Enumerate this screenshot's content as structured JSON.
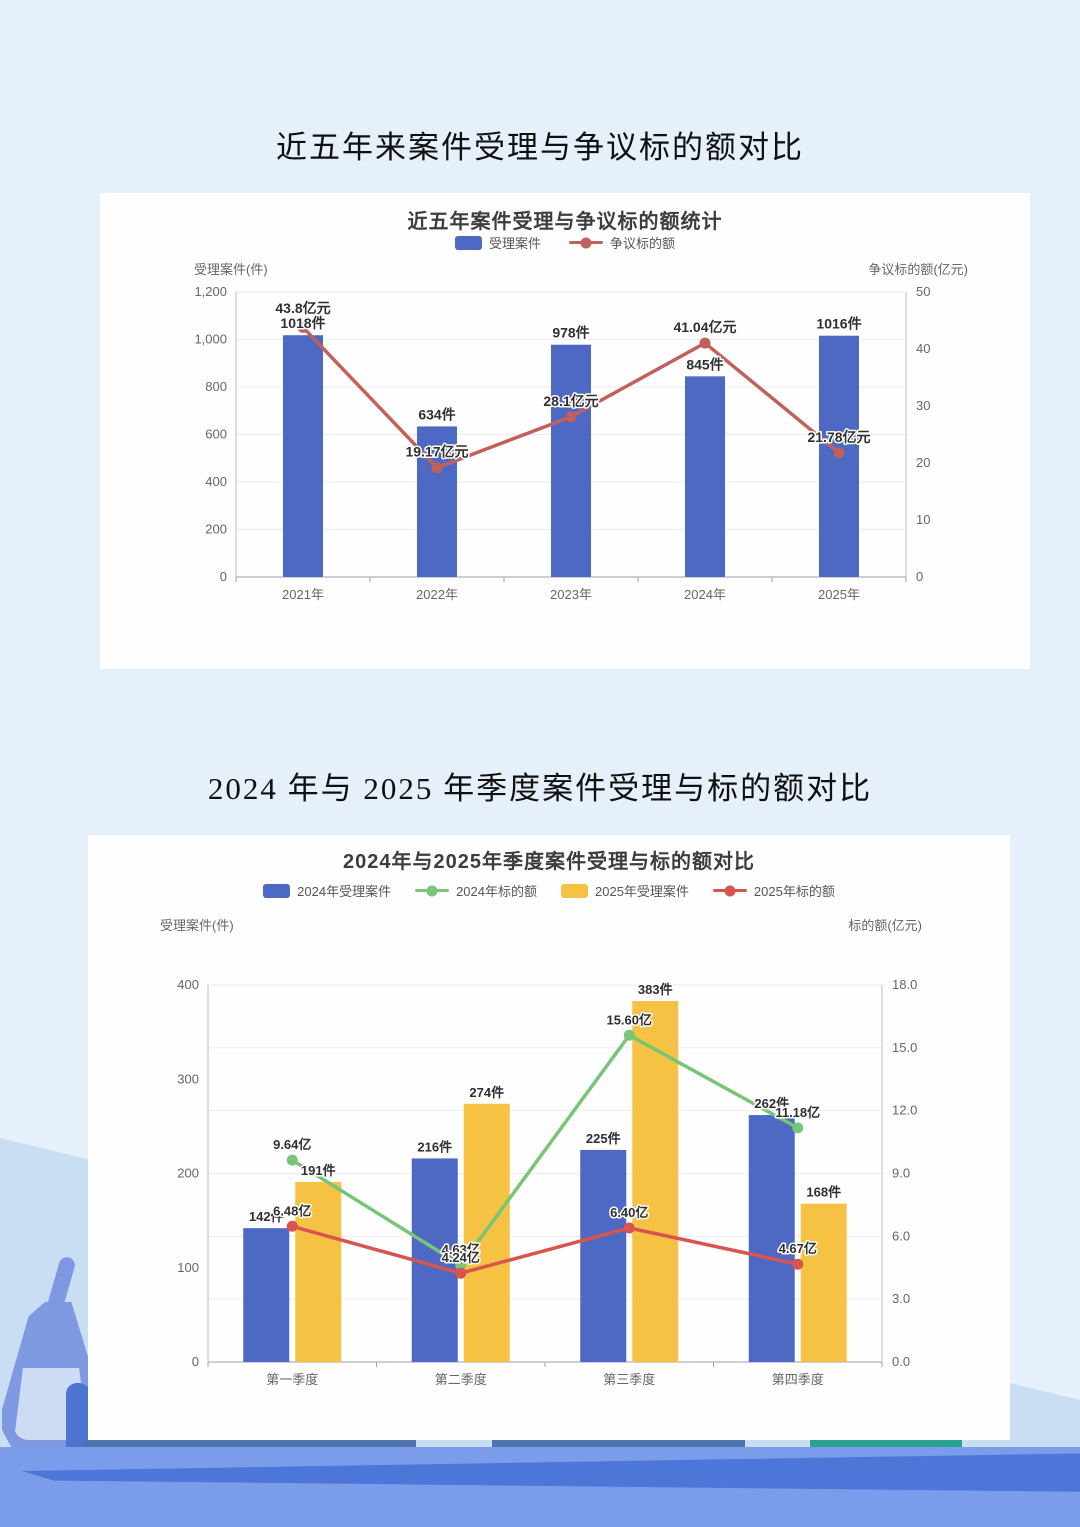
{
  "page": {
    "section1_title": "近五年来案件受理与争议标的额对比",
    "section2_title": "2024 年与 2025 年季度案件受理与标的额对比"
  },
  "decor_colors": {
    "page_background": "#e6f0fa",
    "diagonal_shape": "#c9def2",
    "table_band_blue": "#7b9ceb",
    "table_wedge_blue": "#4c77d8",
    "shelf_teal": "#2ba391",
    "flask_blue": "#7e99e2",
    "bottle_blue": "#4c74d0"
  },
  "chart_data": [
    {
      "type": "bar+line",
      "title": "近五年案件受理与争议标的额统计",
      "categories": [
        "2021年",
        "2022年",
        "2023年",
        "2024年",
        "2025年"
      ],
      "series": [
        {
          "name": "受理案件",
          "type": "bar",
          "axis": "left",
          "color": "#4d69c4",
          "values": [
            1018,
            634,
            978,
            845,
            1016
          ],
          "labels": [
            "1018件",
            "634件",
            "978件",
            "845件",
            "1016件"
          ]
        },
        {
          "name": "争议标的额",
          "type": "line",
          "axis": "right",
          "color": "#c2605e",
          "values": [
            43.8,
            19.17,
            28.1,
            41.04,
            21.78
          ],
          "labels": [
            "43.8亿元",
            "19.17亿元",
            "28.1亿元",
            "41.04亿元",
            "21.78亿元"
          ]
        }
      ],
      "left_axis": {
        "title": "受理案件(件)",
        "min": 0,
        "max": 1200,
        "ticks": [
          "1,200",
          "1,000",
          "800",
          "600",
          "400",
          "200",
          "0"
        ]
      },
      "right_axis": {
        "title": "争议标的额(亿元)",
        "min": 0,
        "max": 50,
        "ticks": [
          "50",
          "40",
          "30",
          "20",
          "10",
          "0"
        ]
      },
      "grid": "left",
      "legend_position": "top"
    },
    {
      "type": "grouped-bar+line",
      "title": "2024年与2025年季度案件受理与标的额对比",
      "categories": [
        "第一季度",
        "第二季度",
        "第三季度",
        "第四季度"
      ],
      "series": [
        {
          "name": "2024年受理案件",
          "type": "bar",
          "axis": "left",
          "color": "#4d69c4",
          "values": [
            142,
            216,
            225,
            262
          ],
          "labels": [
            "142件",
            "216件",
            "225件",
            "262件"
          ]
        },
        {
          "name": "2024年标的额",
          "type": "line",
          "axis": "right",
          "color": "#77c577",
          "values": [
            9.64,
            4.63,
            15.6,
            11.18
          ],
          "labels": [
            "9.64亿",
            "4.63亿",
            "15.60亿",
            "11.18亿"
          ]
        },
        {
          "name": "2025年受理案件",
          "type": "bar",
          "axis": "left",
          "color": "#f6c243",
          "values": [
            191,
            274,
            383,
            168
          ],
          "labels": [
            "191件",
            "274件",
            "383件",
            "168件"
          ]
        },
        {
          "name": "2025年标的额",
          "type": "line",
          "axis": "right",
          "color": "#da544e",
          "values": [
            6.48,
            4.24,
            6.4,
            4.67
          ],
          "labels": [
            "6.48亿",
            "4.24亿",
            "6.40亿",
            "4.67亿"
          ]
        }
      ],
      "left_axis": {
        "title": "受理案件(件)",
        "min": 0,
        "max": 400,
        "ticks": [
          "400",
          "300",
          "200",
          "100",
          "0"
        ]
      },
      "right_axis": {
        "title": "标的额(亿元)",
        "min": 0,
        "max": 18,
        "ticks": [
          "18.0",
          "15.0",
          "12.0",
          "9.0",
          "6.0",
          "3.0",
          "0.0"
        ]
      },
      "grid": "right",
      "legend_position": "top"
    }
  ]
}
